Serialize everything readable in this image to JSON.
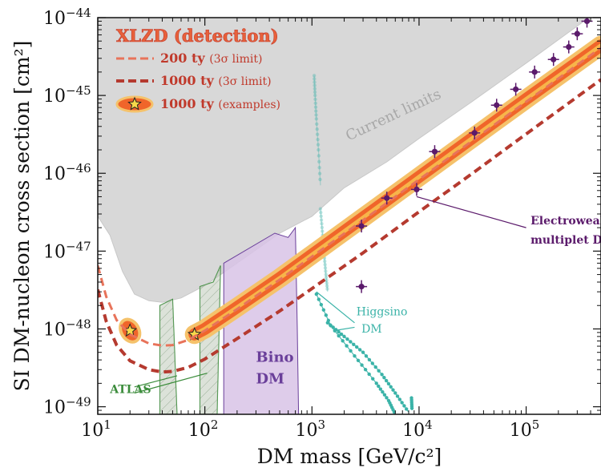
{
  "chart_data": {
    "type": "line",
    "xlabel": "DM mass [GeV/c²]",
    "ylabel": "SI DM-nucleon cross section [cm²]",
    "xscale": "log",
    "yscale": "log",
    "xlim": [
      10,
      500000
    ],
    "ylim": [
      8e-50,
      1e-44
    ],
    "xticks": [
      {
        "value": 10,
        "base": "10",
        "exp": "1"
      },
      {
        "value": 100,
        "base": "10",
        "exp": "2"
      },
      {
        "value": 1000,
        "base": "10",
        "exp": "3"
      },
      {
        "value": 10000,
        "base": "10",
        "exp": "4"
      },
      {
        "value": 100000,
        "base": "10",
        "exp": "5"
      }
    ],
    "yticks": [
      {
        "value": 1e-49,
        "base": "10",
        "exp": "−49"
      },
      {
        "value": 1e-48,
        "base": "10",
        "exp": "−48"
      },
      {
        "value": 1e-47,
        "base": "10",
        "exp": "−47"
      },
      {
        "value": 1e-46,
        "base": "10",
        "exp": "−46"
      },
      {
        "value": 1e-45,
        "base": "10",
        "exp": "−45"
      },
      {
        "value": 1e-44,
        "base": "10",
        "exp": "−44"
      }
    ],
    "legend": {
      "placement": "top-left",
      "title": "XLZD (detection)",
      "entries": [
        {
          "label": "200 ty",
          "sub": "(3σ limit)",
          "style": "dashed-light"
        },
        {
          "label": "1000 ty",
          "sub": "(3σ limit)",
          "style": "dashed-dark"
        },
        {
          "label": "1000 ty",
          "sub": "(examples)",
          "style": "band-star"
        }
      ]
    },
    "series": [
      {
        "name": "200 ty",
        "style": "dashed",
        "color": "#e8735a",
        "points": [
          [
            10,
            6.5e-48
          ],
          [
            12,
            2.6e-48
          ],
          [
            15,
            1.3e-48
          ],
          [
            20,
            8.5e-49
          ],
          [
            30,
            6.5e-49
          ],
          [
            40,
            6.1e-49
          ],
          [
            50,
            6.2e-49
          ],
          [
            70,
            7.2e-49
          ],
          [
            100,
            9.5e-49
          ],
          [
            200,
            1.8e-48
          ],
          [
            500,
            4.3e-48
          ],
          [
            1000,
            8.5e-48
          ],
          [
            3000,
            2.5e-47
          ],
          [
            10000,
            8.3e-47
          ],
          [
            30000,
            2.5e-46
          ],
          [
            100000,
            8.3e-46
          ],
          [
            500000,
            4.1e-45
          ]
        ]
      },
      {
        "name": "1000 ty",
        "style": "dashed",
        "color": "#b53a2f",
        "points": [
          [
            10,
            3.2e-48
          ],
          [
            12,
            1.25e-48
          ],
          [
            15,
            6.2e-49
          ],
          [
            20,
            3.9e-49
          ],
          [
            30,
            3e-49
          ],
          [
            40,
            2.8e-49
          ],
          [
            50,
            2.85e-49
          ],
          [
            70,
            3.2e-49
          ],
          [
            100,
            4.1e-49
          ],
          [
            200,
            7.5e-49
          ],
          [
            500,
            1.7e-48
          ],
          [
            1000,
            3.3e-48
          ],
          [
            3000,
            9.5e-48
          ],
          [
            10000,
            3.2e-47
          ],
          [
            30000,
            9.5e-47
          ],
          [
            100000,
            3.2e-46
          ],
          [
            500000,
            1.6e-45
          ]
        ]
      }
    ],
    "examples_band": {
      "name": "1000 ty",
      "color": "#f0652a",
      "points": [
        [
          80,
          8.5e-49
        ],
        [
          100,
          1e-48
        ],
        [
          200,
          1.9e-48
        ],
        [
          500,
          4.5e-48
        ],
        [
          1000,
          9e-48
        ],
        [
          3000,
          2.7e-47
        ],
        [
          10000,
          9e-47
        ],
        [
          30000,
          2.7e-46
        ],
        [
          100000,
          9e-46
        ],
        [
          500000,
          4.4e-45
        ]
      ],
      "blob": {
        "x": 20,
        "y": 9.5e-49
      },
      "stars": [
        {
          "x": 20,
          "y": 9.5e-49
        },
        {
          "x": 80,
          "y": 8.5e-49
        }
      ]
    },
    "regions": [
      {
        "name": "current-limits",
        "label": "Current limits",
        "color": "#d4d4d4",
        "points": [
          [
            10,
            2.8e-47
          ],
          [
            13,
            1.6e-47
          ],
          [
            17,
            5.5e-48
          ],
          [
            22,
            2.8e-48
          ],
          [
            30,
            2.3e-48
          ],
          [
            40,
            2.2e-48
          ],
          [
            60,
            2.5e-48
          ],
          [
            100,
            3.6e-48
          ],
          [
            200,
            7e-48
          ],
          [
            500,
            1.7e-47
          ],
          [
            1000,
            2.8e-47
          ],
          [
            2000,
            6.5e-47
          ],
          [
            5000,
            1.4e-46
          ],
          [
            10000,
            2.8e-46
          ],
          [
            30000,
            8e-46
          ],
          [
            100000,
            2.6e-45
          ],
          [
            300000,
            7.8e-45
          ],
          [
            500000,
            1.3e-44
          ],
          [
            500000,
            1e-44
          ],
          [
            10,
            1e-44
          ]
        ]
      },
      {
        "name": "bino-dm",
        "label": "Bino DM",
        "color": "#d8c3e6",
        "points": [
          [
            150,
            8e-50
          ],
          [
            150,
            7e-48
          ],
          [
            450,
            1.7e-47
          ],
          [
            600,
            1.5e-47
          ],
          [
            700,
            2e-47
          ],
          [
            730,
            1e-48
          ],
          [
            750,
            8e-50
          ]
        ]
      },
      {
        "name": "atlas-1",
        "label": "ATLAS",
        "color": "#b9c6b4",
        "points": [
          [
            38,
            8e-50
          ],
          [
            38,
            2e-48
          ],
          [
            50,
            2.4e-48
          ],
          [
            55,
            8e-50
          ]
        ]
      },
      {
        "name": "atlas-2",
        "color": "#b9c6b4",
        "points": [
          [
            90,
            8e-50
          ],
          [
            90,
            3.5e-48
          ],
          [
            120,
            4e-48
          ],
          [
            140,
            6.5e-48
          ],
          [
            130,
            8e-50
          ]
        ]
      }
    ],
    "higgsino": {
      "label": "Higgsino DM",
      "color": "#3bb3a8",
      "tracks": [
        [
          [
            1050,
            1.8e-45
          ],
          [
            1070,
            1e-45
          ],
          [
            1100,
            5e-46
          ],
          [
            1150,
            2e-46
          ],
          [
            1200,
            7e-47
          ]
        ],
        [
          [
            1200,
            3.5e-47
          ],
          [
            1250,
            1.8e-47
          ],
          [
            1300,
            9e-48
          ],
          [
            1350,
            5e-48
          ],
          [
            1400,
            3e-48
          ]
        ],
        [
          [
            1100,
            2.8e-48
          ],
          [
            1500,
            1.1e-48
          ],
          [
            2500,
            4.5e-49
          ],
          [
            4000,
            2e-49
          ],
          [
            5200,
            1.2e-49
          ],
          [
            6000,
            8e-50
          ]
        ],
        [
          [
            1400,
            1.2e-48
          ],
          [
            2000,
            8e-49
          ],
          [
            3000,
            5e-49
          ],
          [
            4500,
            2.6e-49
          ],
          [
            6000,
            1.5e-49
          ],
          [
            8000,
            8.5e-50
          ]
        ],
        [
          [
            8500,
            1.3e-49
          ],
          [
            8600,
            9e-50
          ]
        ]
      ]
    },
    "electroweak_points": {
      "label": "Electroweak multiplet DM",
      "color": "#5b1a6b",
      "points": [
        {
          "x": 2900,
          "y": 3.5e-48
        },
        {
          "x": 2900,
          "y": 2.1e-47
        },
        {
          "x": 5000,
          "y": 4.8e-47
        },
        {
          "x": 9500,
          "y": 6.2e-47
        },
        {
          "x": 14000,
          "y": 1.9e-46
        },
        {
          "x": 33000,
          "y": 3.3e-46
        },
        {
          "x": 53000,
          "y": 7.5e-46
        },
        {
          "x": 80000,
          "y": 1.2e-45
        },
        {
          "x": 120000,
          "y": 2e-45
        },
        {
          "x": 180000,
          "y": 2.9e-45
        },
        {
          "x": 250000,
          "y": 4.2e-45
        },
        {
          "x": 300000,
          "y": 6.2e-45
        },
        {
          "x": 370000,
          "y": 9e-45
        }
      ]
    },
    "annotations": [
      {
        "text": "Current limits",
        "x": 2200,
        "y": 2.6e-46,
        "color": "#a8a8a8",
        "angle": -25,
        "size": 18
      },
      {
        "text": "Electroweak",
        "x": 110000,
        "y": 2.2e-47,
        "color": "#5b1a6b",
        "size": 14,
        "bold": true
      },
      {
        "text": "multiplet DM",
        "x": 110000,
        "y": 1.25e-47,
        "color": "#5b1a6b",
        "size": 14,
        "bold": true
      },
      {
        "text": "Higgsino",
        "x": 2600,
        "y": 1.5e-48,
        "color": "#3bb3a8",
        "size": 14
      },
      {
        "text": "DM",
        "x": 2900,
        "y": 9e-49,
        "color": "#3bb3a8",
        "size": 14
      },
      {
        "text": "Bino",
        "x": 300,
        "y": 3.8e-49,
        "color": "#6a3f9a",
        "size": 18,
        "bold": true
      },
      {
        "text": "DM",
        "x": 300,
        "y": 2e-49,
        "color": "#6a3f9a",
        "size": 18,
        "bold": true
      },
      {
        "text": "ATLAS",
        "x": 13,
        "y": 1.5e-49,
        "color": "#3b8c3b",
        "size": 14,
        "bold": true
      }
    ]
  }
}
